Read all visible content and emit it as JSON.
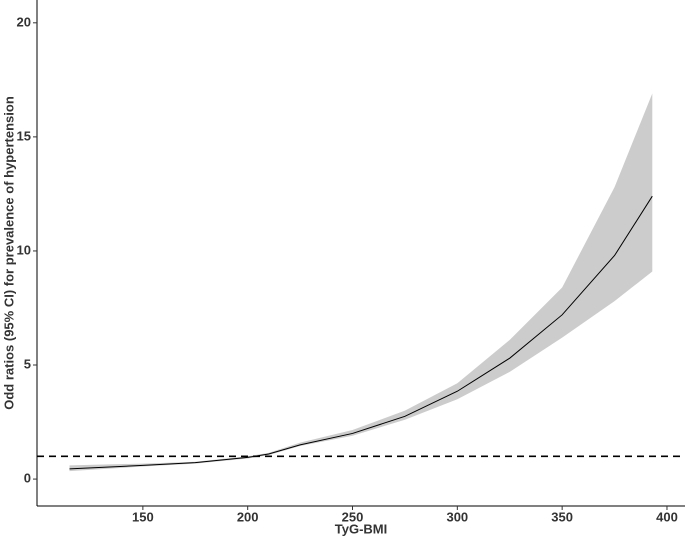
{
  "chart_data": {
    "type": "line",
    "x_label": "TyG-BMI",
    "y_label": "Odd ratios (95% CI) for prevalence of hypertension",
    "x": [
      115,
      150,
      175,
      200,
      210,
      225,
      250,
      275,
      300,
      325,
      350,
      375,
      393
    ],
    "series": [
      {
        "color": "#000000",
        "band_color": "#cccccc",
        "values": [
          0.45,
          0.6,
          0.72,
          0.95,
          1.1,
          1.5,
          2.0,
          2.75,
          3.85,
          5.3,
          7.2,
          9.8,
          12.4
        ],
        "lower": [
          0.35,
          0.55,
          0.68,
          0.9,
          1.05,
          1.45,
          1.9,
          2.6,
          3.5,
          4.7,
          6.2,
          7.8,
          9.1
        ],
        "upper": [
          0.6,
          0.68,
          0.76,
          1.0,
          1.15,
          1.6,
          2.15,
          3.0,
          4.2,
          6.1,
          8.4,
          12.8,
          16.9
        ]
      }
    ],
    "reference_line": 1,
    "xlim": [
      99.5,
      408.6
    ],
    "ylim": [
      -1.18,
      21.0
    ],
    "xticks": [
      150,
      200,
      250,
      300,
      350,
      400
    ],
    "yticks": [
      0,
      5,
      10,
      15,
      20
    ],
    "grid": false
  }
}
